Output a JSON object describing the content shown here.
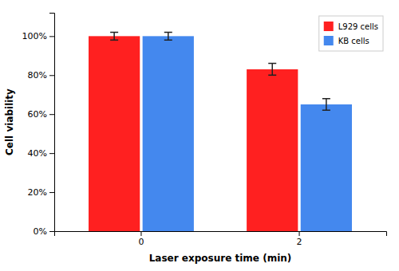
{
  "chart_data": {
    "type": "bar",
    "categories": [
      "0",
      "2"
    ],
    "series": [
      {
        "name": "L929 cells",
        "color": "#ff2020",
        "values": [
          100,
          83
        ],
        "errors": [
          2,
          3
        ]
      },
      {
        "name": "KB cells",
        "color": "#4488ee",
        "values": [
          100,
          65
        ],
        "errors": [
          2,
          3
        ]
      }
    ],
    "xlabel": "Laser exposure time (min)",
    "ylabel": "Cell viability",
    "ylim": [
      0,
      112
    ],
    "yticks": [
      {
        "value": 0,
        "label": "0%"
      },
      {
        "value": 20,
        "label": "20%"
      },
      {
        "value": 40,
        "label": "40%"
      },
      {
        "value": 60,
        "label": "60%"
      },
      {
        "value": 80,
        "label": "80%"
      },
      {
        "value": 100,
        "label": "100%"
      }
    ],
    "legend": "upper right",
    "grid": false
  }
}
